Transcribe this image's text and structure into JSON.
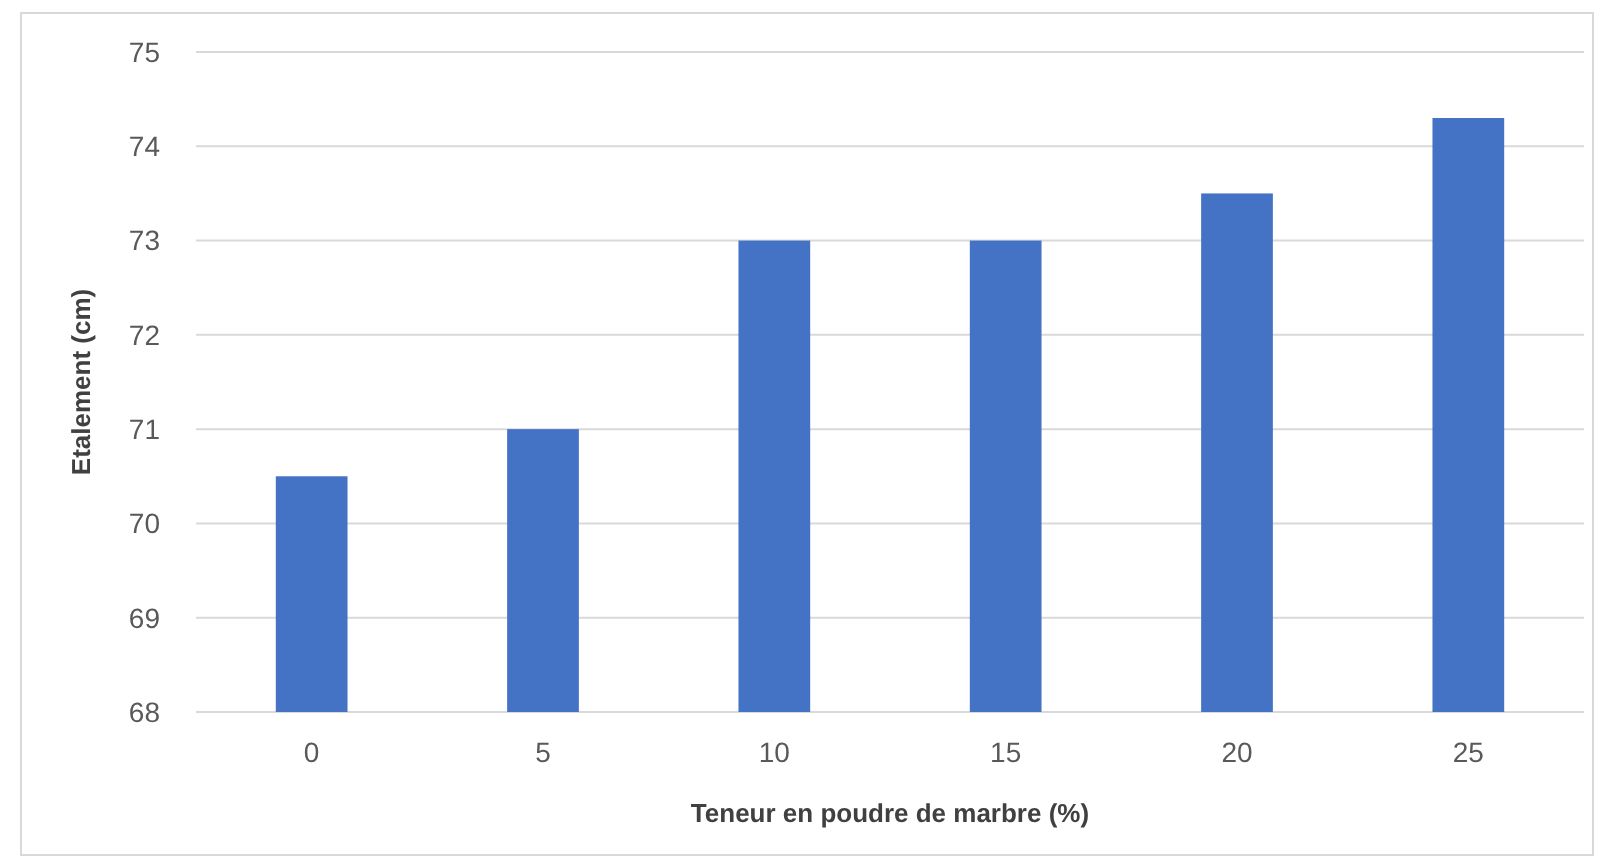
{
  "chart_data": {
    "type": "bar",
    "xlabel": "Teneur en poudre de marbre (%)",
    "ylabel": "Etalement (cm)",
    "categories": [
      "0",
      "5",
      "10",
      "15",
      "20",
      "25"
    ],
    "values": [
      70.5,
      71.0,
      73.0,
      73.0,
      73.5,
      74.3
    ],
    "color": "#4472c4",
    "ylim": [
      68,
      75
    ],
    "yticks": [
      68,
      69,
      70,
      71,
      72,
      73,
      74,
      75
    ],
    "grid": "y"
  }
}
